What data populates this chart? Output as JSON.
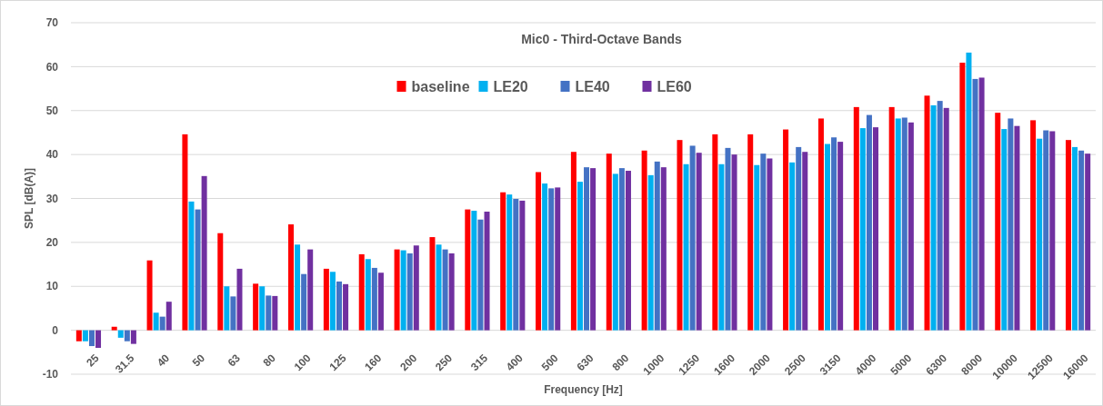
{
  "chart_data": {
    "type": "bar",
    "title": "Mic0 - Third-Octave Bands",
    "xlabel": "Frequency [Hz]",
    "ylabel": "SPL [dB(A)]",
    "categories": [
      "25",
      "31.5",
      "40",
      "50",
      "63",
      "80",
      "100",
      "125",
      "160",
      "200",
      "250",
      "315",
      "400",
      "500",
      "630",
      "800",
      "1000",
      "1250",
      "1600",
      "2000",
      "2500",
      "3150",
      "4000",
      "5000",
      "6300",
      "8000",
      "10000",
      "12500",
      "16000"
    ],
    "series": [
      {
        "name": "baseline",
        "color": "#ff0000",
        "values": [
          -2.5,
          0.8,
          15.9,
          44.6,
          22.1,
          10.6,
          24.1,
          14,
          17.3,
          18.4,
          21.2,
          27.5,
          31.4,
          36,
          40.6,
          40.2,
          40.9,
          43.3,
          44.6,
          44.6,
          45.7,
          48.2,
          50.8,
          50.8,
          53.4,
          60.9,
          49.5,
          47.8,
          43.3
        ]
      },
      {
        "name": "LE20",
        "color": "#00b0f0",
        "values": [
          -2.5,
          -1.7,
          4,
          29.3,
          10,
          10,
          19.5,
          13.3,
          16.2,
          18.2,
          19.5,
          27.2,
          30.9,
          33.4,
          33.8,
          35.6,
          35.3,
          37.8,
          37.8,
          37.6,
          38.2,
          42.4,
          46,
          48.2,
          51.2,
          63.2,
          45.8,
          43.6,
          41.7
        ]
      },
      {
        "name": "LE40",
        "color": "#4472c4",
        "values": [
          -3.6,
          -2.5,
          3.1,
          27.5,
          7.7,
          7.9,
          12.8,
          11.1,
          14.2,
          17.5,
          18.4,
          25.2,
          29.9,
          32.3,
          37.1,
          36.9,
          38.4,
          42,
          41.5,
          40.2,
          41.7,
          43.9,
          49,
          48.4,
          52.2,
          57.2,
          48.2,
          45.5,
          40.9
        ]
      },
      {
        "name": "LE60",
        "color": "#7030a0",
        "values": [
          -4,
          -3.1,
          6.5,
          35.1,
          14,
          7.8,
          18.4,
          10.5,
          13.1,
          19.3,
          17.5,
          27,
          29.5,
          32.5,
          36.9,
          36.3,
          37.1,
          40.4,
          40,
          39.1,
          40.6,
          42.9,
          46.2,
          47.3,
          50.6,
          57.5,
          46.5,
          45.3,
          40.2
        ]
      }
    ],
    "ylim": [
      -10,
      70
    ],
    "yticks": [
      -10,
      0,
      10,
      20,
      30,
      40,
      50,
      60,
      70
    ],
    "grid": "y",
    "legend": "top"
  }
}
